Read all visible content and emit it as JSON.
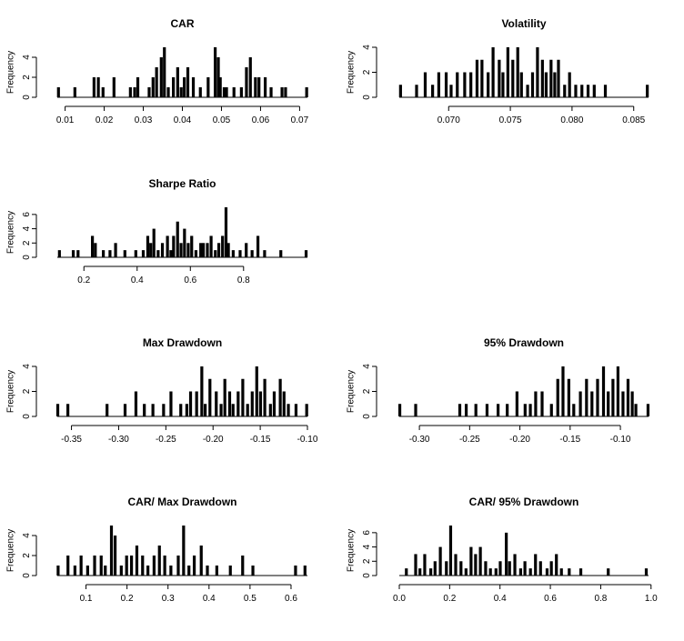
{
  "chart_data": [
    {
      "type": "histogram",
      "title": "CAR",
      "ylabel": "Frequency",
      "xlim": [
        0.008,
        0.072
      ],
      "ylim": [
        0,
        5
      ],
      "xticks": [
        0.01,
        0.02,
        0.03,
        0.04,
        0.05,
        0.06,
        0.07
      ],
      "xtick_labels": [
        "0.01",
        "0.02",
        "0.03",
        "0.04",
        "0.05",
        "0.06",
        "0.07"
      ],
      "yticks": [
        0,
        2,
        4
      ],
      "ytick_labels": [
        "0",
        "2",
        "4"
      ],
      "x": [
        0.0083,
        0.0125,
        0.0174,
        0.0185,
        0.0197,
        0.0225,
        0.0267,
        0.0278,
        0.0286,
        0.0315,
        0.0325,
        0.0334,
        0.0346,
        0.0354,
        0.0364,
        0.0377,
        0.0388,
        0.0397,
        0.0405,
        0.0414,
        0.0428,
        0.0446,
        0.0466,
        0.0484,
        0.0492,
        0.0497,
        0.0507,
        0.0513,
        0.0532,
        0.0551,
        0.0564,
        0.0574,
        0.0587,
        0.0596,
        0.0612,
        0.0627,
        0.0655,
        0.0664,
        0.0718
      ],
      "values": [
        1,
        1,
        2,
        2,
        1,
        2,
        1,
        1,
        2,
        1,
        2,
        3,
        4,
        5,
        1,
        2,
        3,
        1,
        2,
        3,
        2,
        1,
        2,
        5,
        4,
        2,
        1,
        1,
        1,
        1,
        3,
        4,
        2,
        2,
        2,
        1,
        1,
        1,
        1
      ]
    },
    {
      "type": "histogram",
      "title": "Volatility",
      "ylabel": "Frequency",
      "xlim": [
        0.066,
        0.0862
      ],
      "ylim": [
        0,
        4
      ],
      "xticks": [
        0.07,
        0.075,
        0.08,
        0.085
      ],
      "xtick_labels": [
        "0.070",
        "0.075",
        "0.080",
        "0.085"
      ],
      "yticks": [
        0,
        2,
        4
      ],
      "ytick_labels": [
        "0",
        "2",
        "4"
      ],
      "x": [
        0.0661,
        0.0674,
        0.0681,
        0.0687,
        0.0692,
        0.0698,
        0.0702,
        0.0707,
        0.0713,
        0.0718,
        0.0723,
        0.0727,
        0.0732,
        0.0736,
        0.0741,
        0.0744,
        0.0748,
        0.0752,
        0.0756,
        0.0759,
        0.0764,
        0.0768,
        0.0772,
        0.0776,
        0.0779,
        0.0783,
        0.0786,
        0.0789,
        0.0794,
        0.0798,
        0.0803,
        0.0808,
        0.0813,
        0.0818,
        0.0827,
        0.0861
      ],
      "values": [
        1,
        1,
        2,
        1,
        2,
        2,
        1,
        2,
        2,
        2,
        3,
        3,
        2,
        4,
        3,
        2,
        4,
        3,
        4,
        2,
        1,
        2,
        4,
        3,
        2,
        3,
        2,
        3,
        1,
        2,
        1,
        1,
        1,
        1,
        1,
        1
      ]
    },
    {
      "type": "histogram",
      "title": "Sharpe Ratio",
      "ylabel": "Frequency",
      "xlim": [
        0.1,
        1.04
      ],
      "ylim": [
        0,
        7
      ],
      "xticks": [
        0.2,
        0.4,
        0.6,
        0.8
      ],
      "xtick_labels": [
        "0.2",
        "0.4",
        "0.6",
        "0.8"
      ],
      "yticks": [
        0,
        2,
        4,
        6
      ],
      "ytick_labels": [
        "0",
        "2",
        "4",
        "6"
      ],
      "x": [
        0.108,
        0.16,
        0.178,
        0.232,
        0.243,
        0.273,
        0.298,
        0.319,
        0.354,
        0.395,
        0.423,
        0.44,
        0.451,
        0.463,
        0.479,
        0.495,
        0.514,
        0.527,
        0.537,
        0.552,
        0.565,
        0.578,
        0.592,
        0.605,
        0.621,
        0.639,
        0.649,
        0.664,
        0.678,
        0.694,
        0.707,
        0.721,
        0.734,
        0.743,
        0.761,
        0.787,
        0.81,
        0.832,
        0.854,
        0.879,
        0.94,
        1.035
      ],
      "values": [
        1,
        1,
        1,
        3,
        2,
        1,
        1,
        2,
        1,
        1,
        1,
        3,
        2,
        4,
        1,
        2,
        3,
        1,
        3,
        5,
        2,
        4,
        2,
        3,
        1,
        2,
        2,
        2,
        3,
        1,
        2,
        3,
        7,
        2,
        1,
        1,
        2,
        1,
        3,
        1,
        1,
        1
      ]
    },
    {
      "type": "histogram",
      "title": "Max Drawdown",
      "ylabel": "Frequency",
      "xlim": [
        -0.365,
        -0.1
      ],
      "ylim": [
        0,
        4
      ],
      "xticks": [
        -0.35,
        -0.3,
        -0.25,
        -0.2,
        -0.15,
        -0.1
      ],
      "xtick_labels": [
        "-0.35",
        "-0.30",
        "-0.25",
        "-0.20",
        "-0.15",
        "-0.10"
      ],
      "yticks": [
        0,
        2,
        4
      ],
      "ytick_labels": [
        "0",
        "2",
        "4"
      ],
      "x": [
        -0.3645,
        -0.3538,
        -0.3123,
        -0.2932,
        -0.2817,
        -0.2728,
        -0.2637,
        -0.2524,
        -0.2446,
        -0.2342,
        -0.2278,
        -0.2238,
        -0.2174,
        -0.2119,
        -0.2083,
        -0.2033,
        -0.1966,
        -0.1915,
        -0.1875,
        -0.1824,
        -0.1788,
        -0.1734,
        -0.1685,
        -0.1634,
        -0.1585,
        -0.1537,
        -0.1497,
        -0.1452,
        -0.1392,
        -0.1352,
        -0.1288,
        -0.1248,
        -0.1202,
        -0.1121,
        -0.1008
      ],
      "values": [
        1,
        1,
        1,
        1,
        2,
        1,
        1,
        1,
        2,
        1,
        1,
        2,
        2,
        4,
        1,
        3,
        2,
        1,
        3,
        2,
        1,
        2,
        3,
        1,
        2,
        4,
        2,
        3,
        1,
        2,
        3,
        2,
        1,
        1,
        1
      ]
    },
    {
      "type": "histogram",
      "title": "95% Drawdown",
      "ylabel": "Frequency",
      "xlim": [
        -0.32,
        -0.072
      ],
      "ylim": [
        0,
        4
      ],
      "xticks": [
        -0.3,
        -0.25,
        -0.2,
        -0.15,
        -0.1
      ],
      "xtick_labels": [
        "-0.30",
        "-0.25",
        "-0.20",
        "-0.15",
        "-0.10"
      ],
      "yticks": [
        0,
        2,
        4
      ],
      "ytick_labels": [
        "0",
        "2",
        "4"
      ],
      "x": [
        -0.3195,
        -0.3037,
        -0.2598,
        -0.2534,
        -0.2438,
        -0.2327,
        -0.2217,
        -0.2126,
        -0.2029,
        -0.1948,
        -0.1896,
        -0.1843,
        -0.1779,
        -0.1686,
        -0.1623,
        -0.1571,
        -0.1513,
        -0.1464,
        -0.1398,
        -0.1337,
        -0.1283,
        -0.1227,
        -0.1168,
        -0.1121,
        -0.1074,
        -0.1024,
        -0.0974,
        -0.0924,
        -0.0882,
        -0.0846,
        -0.0725
      ],
      "values": [
        1,
        1,
        1,
        1,
        1,
        1,
        1,
        1,
        2,
        1,
        1,
        2,
        2,
        1,
        3,
        4,
        3,
        1,
        2,
        3,
        2,
        3,
        4,
        2,
        3,
        4,
        2,
        3,
        2,
        1,
        1
      ]
    },
    {
      "type": "histogram",
      "title": "CAR/ Max Drawdown",
      "ylabel": "Frequency",
      "xlim": [
        0.03,
        0.64
      ],
      "ylim": [
        0,
        5
      ],
      "xticks": [
        0.1,
        0.2,
        0.3,
        0.4,
        0.5,
        0.6
      ],
      "xtick_labels": [
        "0.1",
        "0.2",
        "0.3",
        "0.4",
        "0.5",
        "0.6"
      ],
      "yticks": [
        0,
        2,
        4
      ],
      "ytick_labels": [
        "0",
        "2",
        "4"
      ],
      "x": [
        0.032,
        0.056,
        0.073,
        0.088,
        0.104,
        0.121,
        0.137,
        0.147,
        0.162,
        0.171,
        0.186,
        0.199,
        0.211,
        0.224,
        0.238,
        0.251,
        0.266,
        0.279,
        0.292,
        0.307,
        0.325,
        0.338,
        0.351,
        0.364,
        0.381,
        0.396,
        0.419,
        0.452,
        0.482,
        0.507,
        0.611,
        0.634
      ],
      "values": [
        1,
        2,
        1,
        2,
        1,
        2,
        2,
        1,
        5,
        4,
        1,
        2,
        2,
        3,
        2,
        1,
        2,
        3,
        2,
        1,
        2,
        5,
        1,
        2,
        3,
        1,
        1,
        1,
        2,
        1,
        1,
        1
      ]
    },
    {
      "type": "histogram",
      "title": "CAR/ 95% Drawdown",
      "ylabel": "Frequency",
      "xlim": [
        0.0,
        0.99
      ],
      "ylim": [
        0,
        7
      ],
      "xticks": [
        0.0,
        0.2,
        0.4,
        0.6,
        0.8,
        1.0
      ],
      "xtick_labels": [
        "0.0",
        "0.2",
        "0.4",
        "0.6",
        "0.8",
        "1.0"
      ],
      "yticks": [
        0,
        2,
        4,
        6
      ],
      "ytick_labels": [
        "0",
        "2",
        "4",
        "6"
      ],
      "x": [
        0.028,
        0.065,
        0.082,
        0.101,
        0.125,
        0.142,
        0.163,
        0.187,
        0.204,
        0.224,
        0.245,
        0.265,
        0.285,
        0.303,
        0.322,
        0.343,
        0.362,
        0.384,
        0.401,
        0.425,
        0.438,
        0.459,
        0.482,
        0.499,
        0.521,
        0.541,
        0.561,
        0.587,
        0.604,
        0.624,
        0.644,
        0.675,
        0.721,
        0.83,
        0.981
      ],
      "values": [
        1,
        3,
        1,
        3,
        1,
        2,
        4,
        2,
        7,
        3,
        2,
        1,
        4,
        3,
        4,
        2,
        1,
        1,
        2,
        6,
        2,
        3,
        1,
        2,
        1,
        3,
        2,
        1,
        2,
        3,
        1,
        1,
        1,
        1,
        1
      ]
    }
  ]
}
